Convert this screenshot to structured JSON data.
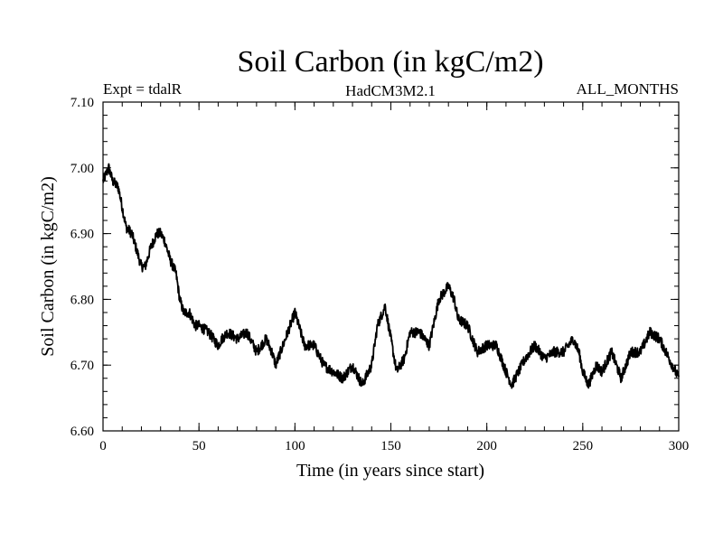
{
  "chart_data": {
    "type": "line",
    "title": "Soil Carbon (in kgC/m2)",
    "subtitle_left": "Expt = tdalR",
    "subtitle_center": "HadCM3M2.1",
    "subtitle_right": "ALL_MONTHS",
    "xlabel": "Time (in years since start)",
    "ylabel": "Soil Carbon (in kgC/m2)",
    "xlim": [
      0,
      300
    ],
    "ylim": [
      6.6,
      7.1
    ],
    "x_ticks": [
      0,
      50,
      100,
      150,
      200,
      250,
      300
    ],
    "x_tick_labels": [
      "0",
      "50",
      "100",
      "150",
      "200",
      "250",
      "300"
    ],
    "y_ticks": [
      6.6,
      6.7,
      6.8,
      6.9,
      7.0,
      7.1
    ],
    "y_tick_labels": [
      "6.60",
      "6.70",
      "6.80",
      "6.90",
      "7.00",
      "7.10"
    ],
    "grid": false,
    "line_color": "#000000",
    "series": [
      {
        "x": [
          0,
          3,
          5,
          8,
          10,
          12,
          15,
          18,
          20,
          22,
          25,
          28,
          30,
          32,
          35,
          38,
          40,
          42,
          45,
          48,
          50,
          55,
          60,
          62,
          65,
          70,
          75,
          80,
          85,
          88,
          90,
          95,
          100,
          103,
          105,
          110,
          115,
          120,
          125,
          130,
          135,
          140,
          143,
          147,
          150,
          153,
          157,
          160,
          165,
          170,
          175,
          180,
          183,
          185,
          190,
          195,
          200,
          205,
          210,
          213,
          220,
          225,
          230,
          235,
          240,
          245,
          248,
          250,
          253,
          257,
          260,
          265,
          270,
          275,
          280,
          285,
          290,
          295,
          300
        ],
        "y": [
          6.98,
          7.0,
          6.98,
          6.97,
          6.94,
          6.91,
          6.9,
          6.87,
          6.85,
          6.85,
          6.88,
          6.9,
          6.9,
          6.89,
          6.86,
          6.84,
          6.8,
          6.78,
          6.78,
          6.76,
          6.76,
          6.75,
          6.73,
          6.74,
          6.75,
          6.74,
          6.75,
          6.72,
          6.74,
          6.72,
          6.7,
          6.74,
          6.78,
          6.75,
          6.73,
          6.73,
          6.7,
          6.69,
          6.68,
          6.7,
          6.67,
          6.7,
          6.76,
          6.79,
          6.74,
          6.69,
          6.71,
          6.75,
          6.75,
          6.73,
          6.8,
          6.82,
          6.8,
          6.77,
          6.76,
          6.72,
          6.73,
          6.73,
          6.69,
          6.67,
          6.71,
          6.73,
          6.71,
          6.72,
          6.72,
          6.74,
          6.72,
          6.69,
          6.67,
          6.7,
          6.69,
          6.72,
          6.68,
          6.72,
          6.72,
          6.75,
          6.74,
          6.71,
          6.68
        ]
      }
    ]
  }
}
